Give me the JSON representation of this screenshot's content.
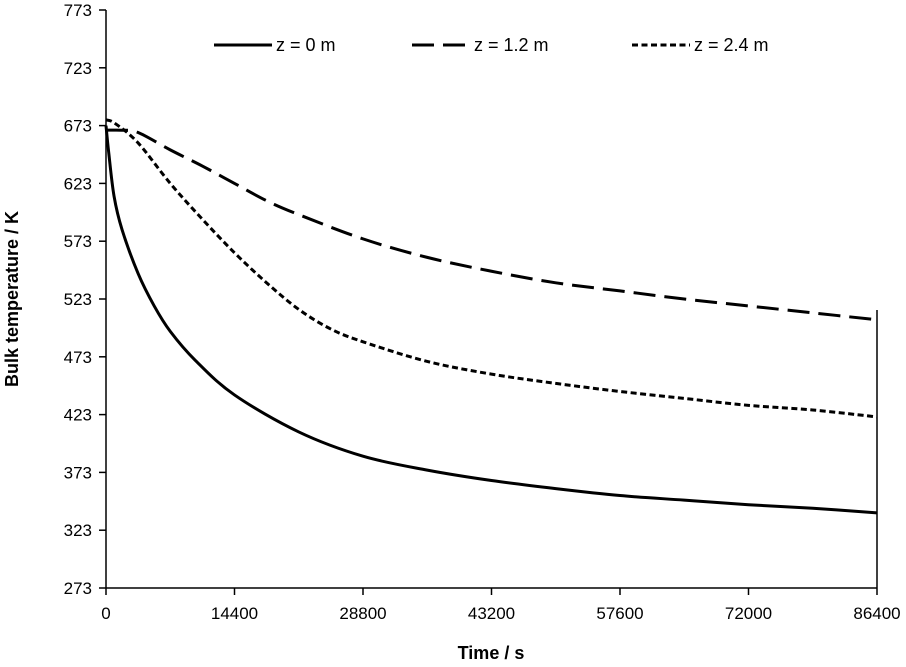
{
  "chart_data": {
    "type": "line",
    "xlabel": "Time / s",
    "ylabel": "Bulk temperature / K",
    "xlim": [
      0,
      86400
    ],
    "ylim": [
      273,
      773
    ],
    "x_ticks": [
      0,
      14400,
      28800,
      43200,
      57600,
      72000,
      86400
    ],
    "y_ticks": [
      273,
      323,
      373,
      423,
      473,
      523,
      573,
      623,
      673,
      723,
      773
    ],
    "x_tick_labels": [
      "0",
      "14400",
      "28800",
      "43200",
      "57600",
      "72000",
      "86400"
    ],
    "y_tick_labels": [
      "273",
      "323",
      "373",
      "423",
      "473",
      "523",
      "573",
      "623",
      "673",
      "723",
      "773"
    ],
    "grid": false,
    "legend_position": "top",
    "series": [
      {
        "name": "z = 0 m",
        "style": "solid",
        "color": "#000000",
        "points": [
          [
            0,
            673
          ],
          [
            300,
            650
          ],
          [
            900,
            612
          ],
          [
            1800,
            583
          ],
          [
            3600,
            545
          ],
          [
            5400,
            517
          ],
          [
            7200,
            495
          ],
          [
            10000,
            470
          ],
          [
            14400,
            440
          ],
          [
            21600,
            408
          ],
          [
            28800,
            387
          ],
          [
            36000,
            375
          ],
          [
            43200,
            366
          ],
          [
            50400,
            359
          ],
          [
            57600,
            353
          ],
          [
            64800,
            349
          ],
          [
            72000,
            345
          ],
          [
            79200,
            342
          ],
          [
            86400,
            338
          ]
        ]
      },
      {
        "name": "z = 1.2 m",
        "style": "dashed",
        "color": "#000000",
        "points": [
          [
            0,
            669
          ],
          [
            1800,
            669
          ],
          [
            3600,
            667
          ],
          [
            7200,
            652
          ],
          [
            10800,
            638
          ],
          [
            14400,
            623
          ],
          [
            18000,
            608
          ],
          [
            21600,
            596
          ],
          [
            28800,
            575
          ],
          [
            36000,
            559
          ],
          [
            43200,
            547
          ],
          [
            50400,
            537
          ],
          [
            57600,
            530
          ],
          [
            64800,
            523
          ],
          [
            72000,
            517
          ],
          [
            79200,
            511
          ],
          [
            86400,
            505
          ]
        ]
      },
      {
        "name": "z = 2.4 m",
        "style": "dotted",
        "color": "#000000",
        "points": [
          [
            0,
            678
          ],
          [
            1000,
            675
          ],
          [
            3600,
            658
          ],
          [
            7200,
            623
          ],
          [
            10800,
            592
          ],
          [
            14400,
            563
          ],
          [
            18000,
            537
          ],
          [
            21600,
            514
          ],
          [
            25200,
            497
          ],
          [
            28800,
            486
          ],
          [
            36000,
            469
          ],
          [
            43200,
            458
          ],
          [
            50400,
            450
          ],
          [
            57600,
            443
          ],
          [
            64800,
            437
          ],
          [
            72000,
            431
          ],
          [
            79200,
            427
          ],
          [
            86400,
            421
          ]
        ]
      }
    ]
  }
}
